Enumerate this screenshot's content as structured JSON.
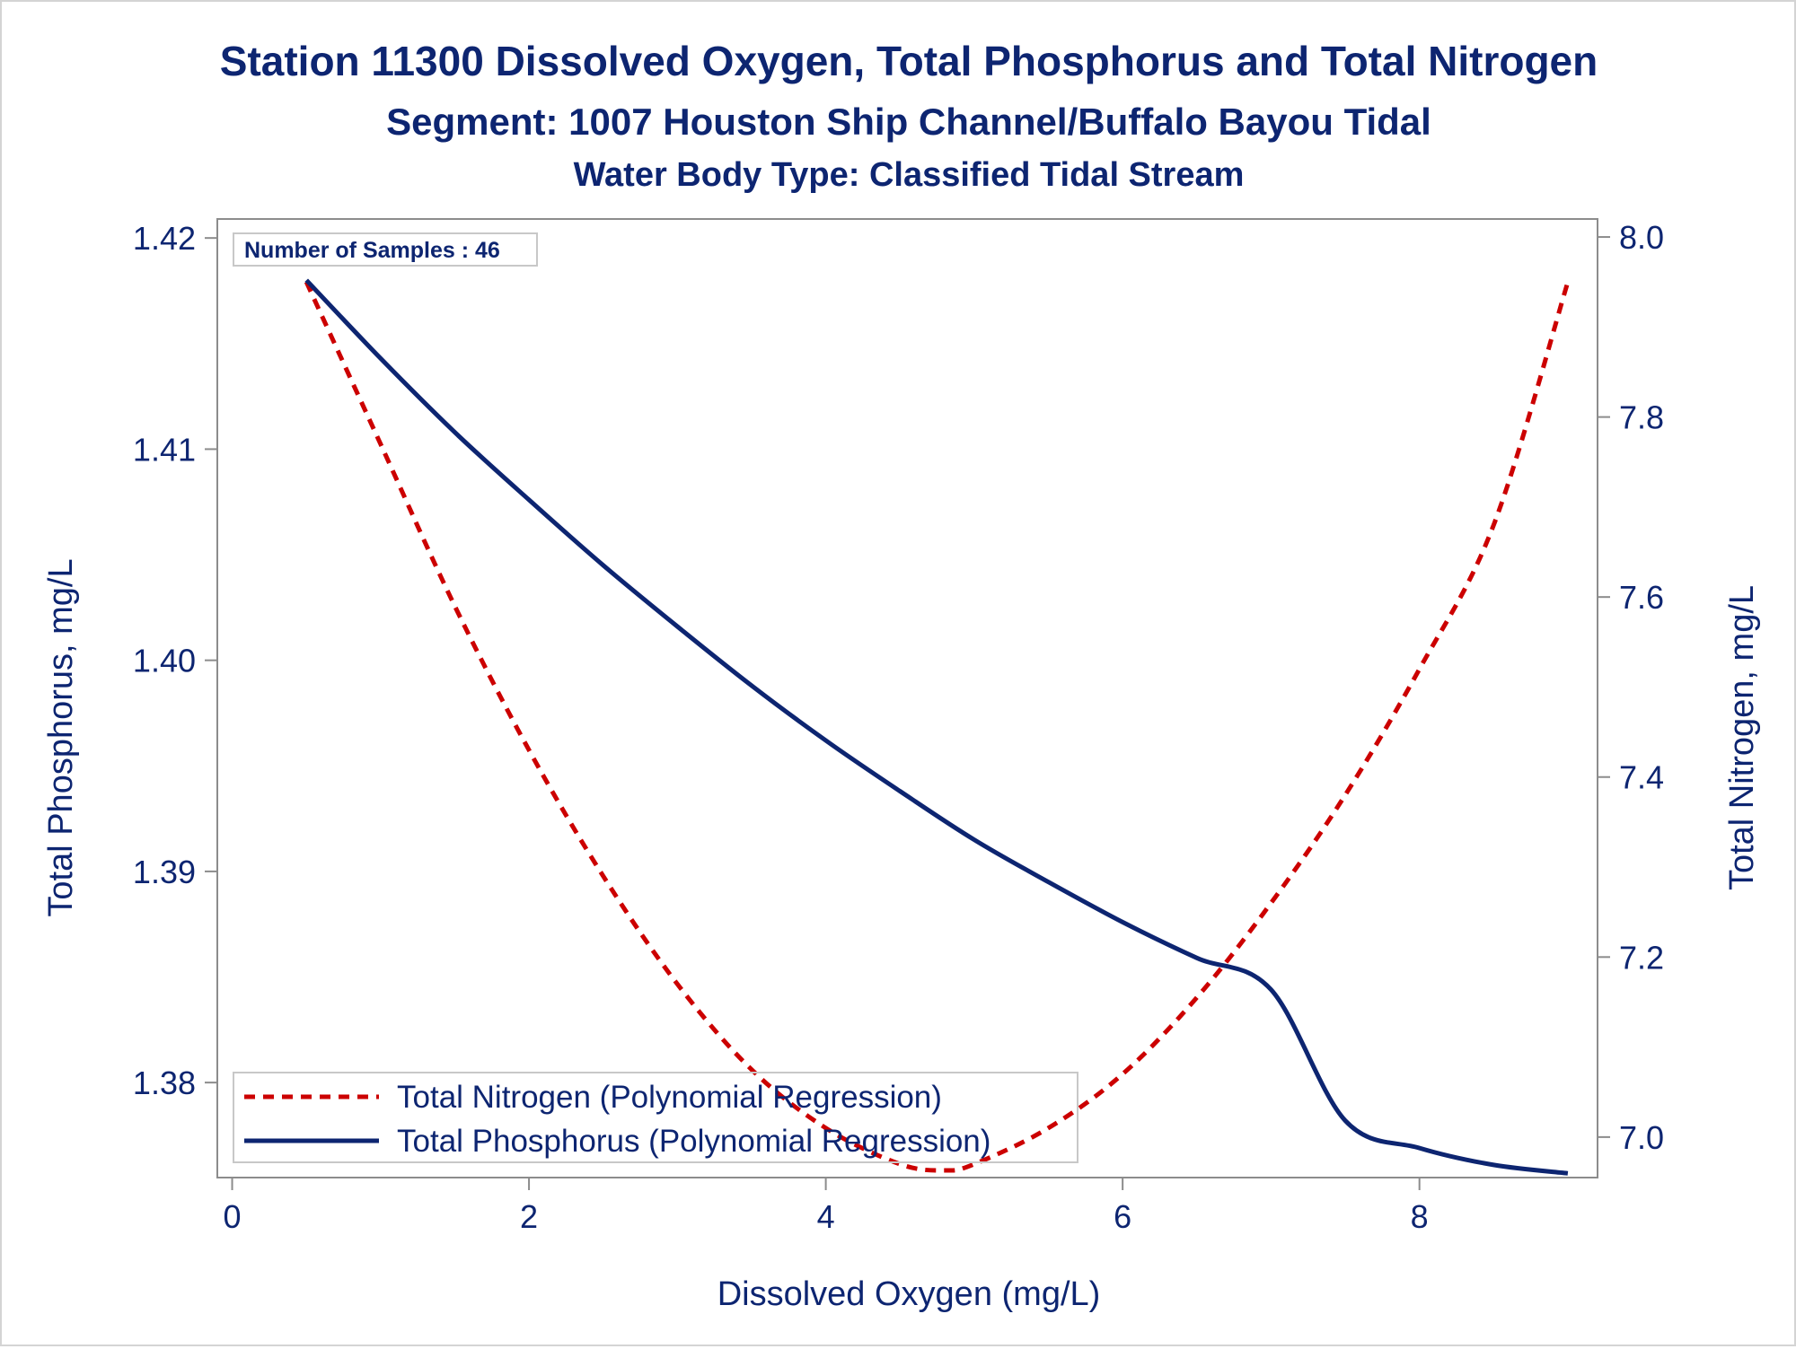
{
  "chart_data": {
    "type": "line",
    "title": "Station 11300  Dissolved Oxygen, Total Phosphorus and Total Nitrogen",
    "subtitle": "Segment: 1007  Houston Ship Channel/Buffalo Bayou Tidal",
    "subtitle2": "Water Body Type: Classified Tidal Stream",
    "xlabel": "Dissolved Oxygen (mg/L)",
    "ylabel": "Total Phosphorus, mg/L",
    "y2label": "Total Nitrogen, mg/L",
    "xlim": [
      -0.1,
      9.2
    ],
    "ylim": [
      1.3755,
      1.4209
    ],
    "y2lim": [
      6.955,
      8.02
    ],
    "xticks": [
      0,
      2,
      4,
      6,
      8
    ],
    "xtick_labels": [
      "0",
      "2",
      "4",
      "6",
      "8"
    ],
    "yticks": [
      1.38,
      1.39,
      1.4,
      1.41,
      1.42
    ],
    "ytick_labels": [
      "1.38",
      "1.39",
      "1.40",
      "1.41",
      "1.42"
    ],
    "y2ticks": [
      7.0,
      7.2,
      7.4,
      7.6,
      7.8,
      8.0
    ],
    "y2tick_labels": [
      "7.0",
      "7.2",
      "7.4",
      "7.6",
      "7.8",
      "8.0"
    ],
    "grid": false,
    "annotation": "Number of Samples : 46",
    "legend_position": "bottom-left",
    "series": [
      {
        "name": "Total Nitrogen (Polynomial Regression)",
        "axis": "right",
        "style": "dashed",
        "color": "#cc0000",
        "x": [
          0.5,
          1.0,
          1.5,
          2.0,
          2.5,
          3.0,
          3.5,
          4.0,
          4.5,
          4.8,
          5.0,
          5.5,
          6.0,
          6.5,
          7.0,
          7.5,
          8.0,
          8.5,
          9.0
        ],
        "values": [
          7.95,
          7.77,
          7.59,
          7.43,
          7.29,
          7.17,
          7.075,
          7.01,
          6.97,
          6.963,
          6.97,
          7.01,
          7.07,
          7.155,
          7.26,
          7.38,
          7.52,
          7.68,
          7.95
        ]
      },
      {
        "name": "Total Phosphorus (Polynomial Regression)",
        "axis": "left",
        "style": "solid",
        "color": "#0d2571",
        "x": [
          0.5,
          1.0,
          1.5,
          2.0,
          2.5,
          3.0,
          3.5,
          4.0,
          4.5,
          5.0,
          5.5,
          6.0,
          6.5,
          7.0,
          7.5,
          8.0,
          8.5,
          9.0
        ],
        "values": [
          1.418,
          1.4143,
          1.4108,
          1.4076,
          1.4045,
          1.4016,
          1.3988,
          1.3962,
          1.3938,
          1.3915,
          1.3895,
          1.3876,
          1.3859,
          1.3844,
          1.3782,
          1.3769,
          1.3761,
          1.3757
        ]
      }
    ]
  }
}
